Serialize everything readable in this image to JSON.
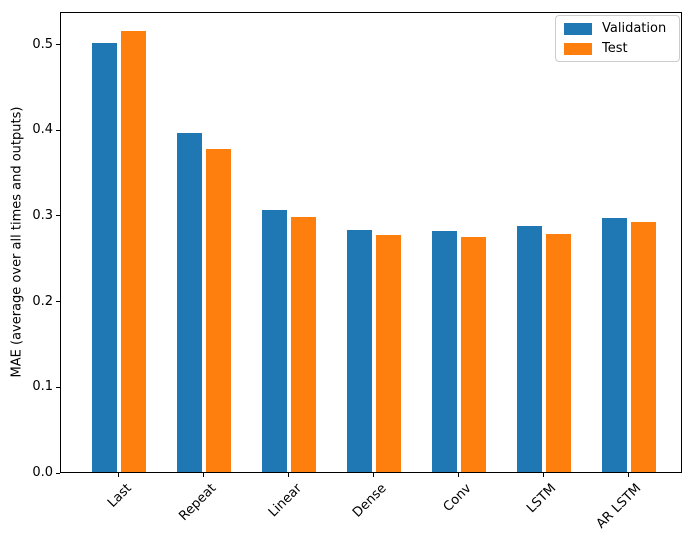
{
  "chart_data": {
    "type": "bar",
    "categories": [
      "Last",
      "Repeat",
      "Linear",
      "Dense",
      "Conv",
      "LSTM",
      "AR LSTM"
    ],
    "series": [
      {
        "name": "Validation",
        "color": "#1f77b4",
        "values": [
          0.501,
          0.396,
          0.306,
          0.282,
          0.281,
          0.287,
          0.297
        ]
      },
      {
        "name": "Test",
        "color": "#ff7f0e",
        "values": [
          0.515,
          0.377,
          0.298,
          0.277,
          0.274,
          0.278,
          0.292
        ]
      }
    ],
    "title": "",
    "xlabel": "",
    "ylabel": "MAE (average over all times and outputs)",
    "yticks": [
      0,
      0.1,
      0.2,
      0.3,
      0.4,
      0.5
    ],
    "ylim": [
      0,
      0.538
    ],
    "xtick_rotation_deg": 45,
    "grid": false,
    "legend": {
      "position": "upper right",
      "entries": [
        "Validation",
        "Test"
      ]
    },
    "axis_color": "#000000",
    "background_color": "#ffffff"
  }
}
